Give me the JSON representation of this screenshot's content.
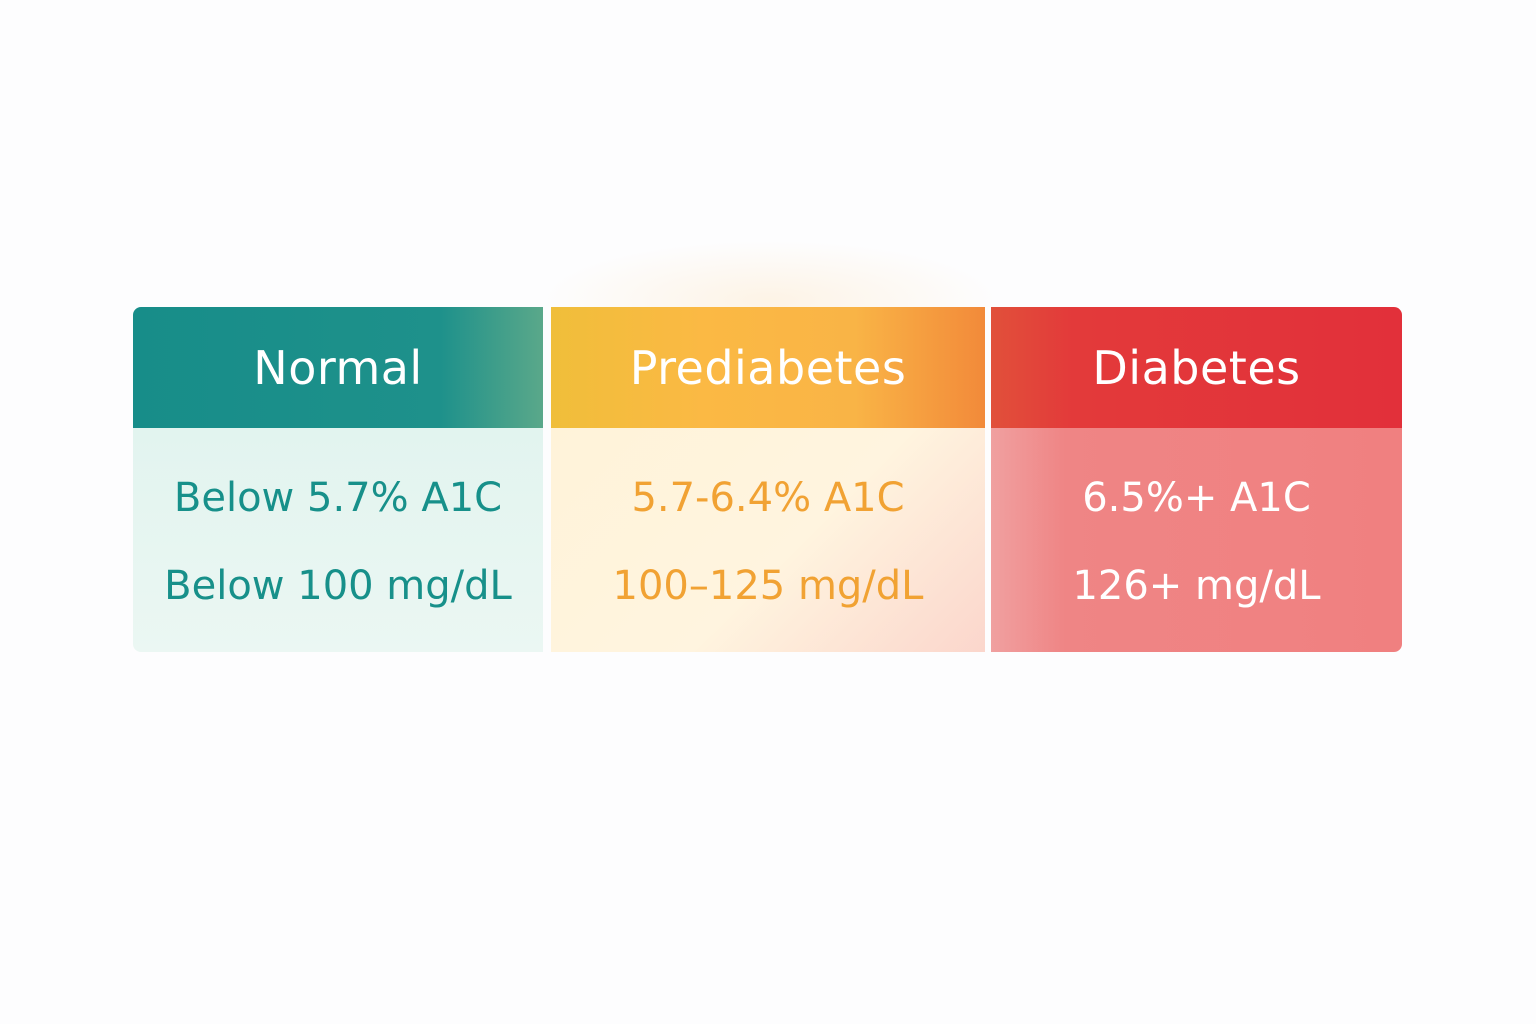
{
  "categories": [
    {
      "id": "normal",
      "title": "Normal",
      "a1c": "Below 5.7% A1C",
      "glucose": "Below 100 mg/dL",
      "colors": {
        "header": "#1a8f8a",
        "body": "#e6f5f1",
        "text": "#17908a"
      }
    },
    {
      "id": "prediabetes",
      "title": "Prediabetes",
      "a1c": "5.7-6.4% A1C",
      "glucose": "100–125 mg/dL",
      "colors": {
        "header": "#fbb944",
        "body": "#fff3d9",
        "text": "#f1a233"
      }
    },
    {
      "id": "diabetes",
      "title": "Diabetes",
      "a1c": "6.5%+ A1C",
      "glucose": "126+ mg/dL",
      "colors": {
        "header": "#e2303a",
        "body": "#f08080",
        "text": "#ffffff"
      }
    }
  ]
}
